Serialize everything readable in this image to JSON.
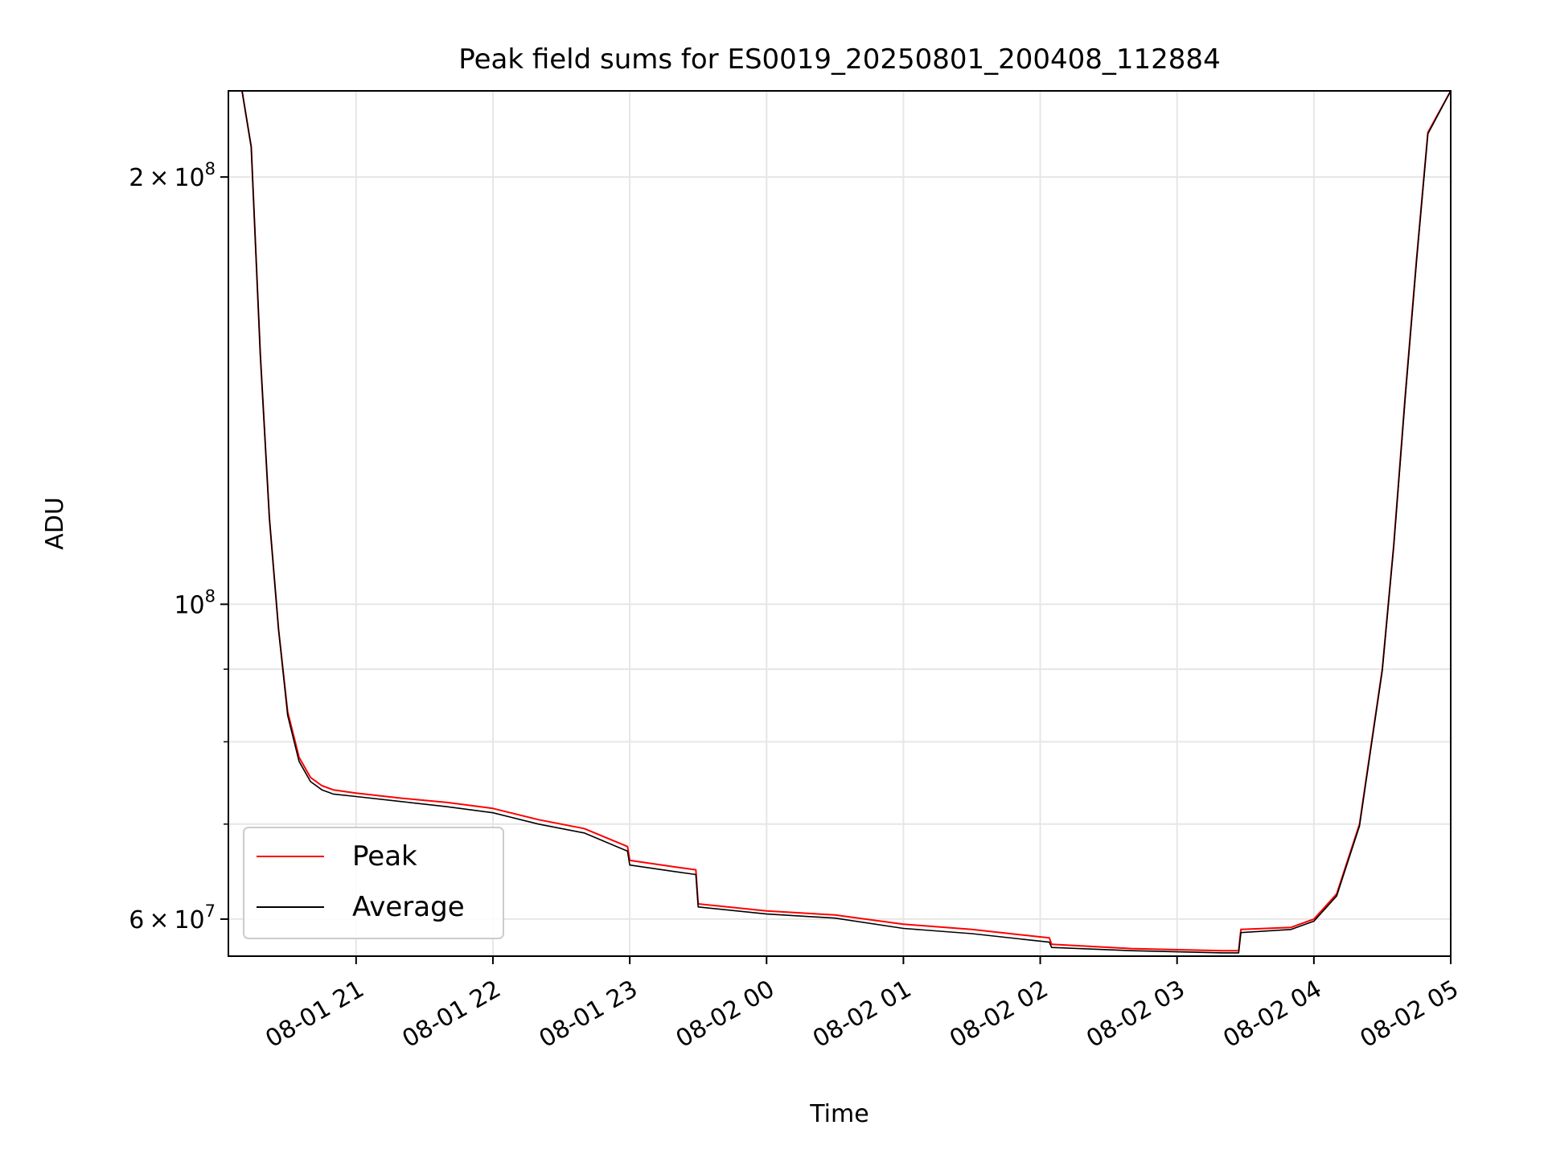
{
  "chart_data": {
    "type": "line",
    "title": "Peak field sums for ES0019_20250801_200408_112884",
    "xlabel": "Time",
    "ylabel": "ADU",
    "y_scale": "log",
    "ylim": [
      56500000,
      230000000
    ],
    "xlim": [
      "2025-08-01 20:04",
      "2025-08-02 05:00"
    ],
    "grid": true,
    "legend_location": "lower-left",
    "x_tick_labels": [
      "08-01 21",
      "08-01 22",
      "08-01 23",
      "08-02 00",
      "08-02 01",
      "08-02 02",
      "08-02 03",
      "08-02 04",
      "08-02 05"
    ],
    "x_ticks": [
      "2025-08-01 21:00",
      "2025-08-01 22:00",
      "2025-08-01 23:00",
      "2025-08-02 00:00",
      "2025-08-02 01:00",
      "2025-08-02 02:00",
      "2025-08-02 03:00",
      "2025-08-02 04:00",
      "2025-08-02 05:00"
    ],
    "y_ticks": [
      {
        "value": 200000000,
        "mantissa": "2",
        "times": "×",
        "base": "10",
        "exp": "8"
      },
      {
        "value": 100000000,
        "mantissa": "",
        "times": "",
        "base": "10",
        "exp": "8"
      },
      {
        "value": 60000000,
        "mantissa": "6",
        "times": "×",
        "base": "10",
        "exp": "7"
      }
    ],
    "y_minor_ticks": [
      70000000,
      80000000,
      90000000
    ],
    "series": [
      {
        "name": "Peak",
        "color": "#ff0000",
        "x": [
          "2025-08-01 20:04",
          "2025-08-01 20:10",
          "2025-08-01 20:14",
          "2025-08-01 20:18",
          "2025-08-01 20:22",
          "2025-08-01 20:26",
          "2025-08-01 20:30",
          "2025-08-01 20:35",
          "2025-08-01 20:40",
          "2025-08-01 20:45",
          "2025-08-01 20:50",
          "2025-08-01 21:00",
          "2025-08-01 21:20",
          "2025-08-01 21:40",
          "2025-08-01 22:00",
          "2025-08-01 22:20",
          "2025-08-01 22:40",
          "2025-08-01 22:59",
          "2025-08-01 23:00",
          "2025-08-01 23:20",
          "2025-08-01 23:29",
          "2025-08-01 23:30",
          "2025-08-02 00:00",
          "2025-08-02 00:30",
          "2025-08-02 01:00",
          "2025-08-02 01:30",
          "2025-08-02 02:04",
          "2025-08-02 02:05",
          "2025-08-02 02:40",
          "2025-08-02 03:20",
          "2025-08-02 03:27",
          "2025-08-02 03:28",
          "2025-08-02 03:50",
          "2025-08-02 04:00",
          "2025-08-02 04:10",
          "2025-08-02 04:20",
          "2025-08-02 04:30",
          "2025-08-02 04:35",
          "2025-08-02 04:40",
          "2025-08-02 04:45",
          "2025-08-02 04:50",
          "2025-08-02 05:00"
        ],
        "y": [
          230000000,
          230000000,
          210000000,
          150000000,
          115000000,
          96000000,
          84000000,
          78000000,
          75500000,
          74500000,
          74000000,
          73600000,
          73000000,
          72500000,
          71800000,
          70500000,
          69500000,
          67500000,
          66000000,
          65300000,
          65000000,
          61500000,
          60800000,
          60400000,
          59500000,
          59000000,
          58200000,
          57600000,
          57200000,
          57000000,
          57000000,
          59000000,
          59200000,
          60000000,
          62500000,
          70000000,
          90000000,
          110000000,
          140000000,
          175000000,
          215000000,
          230000000
        ]
      },
      {
        "name": "Average",
        "color": "#000000",
        "x": [
          "2025-08-01 20:04",
          "2025-08-01 20:10",
          "2025-08-01 20:14",
          "2025-08-01 20:18",
          "2025-08-01 20:22",
          "2025-08-01 20:26",
          "2025-08-01 20:30",
          "2025-08-01 20:35",
          "2025-08-01 20:40",
          "2025-08-01 20:45",
          "2025-08-01 20:50",
          "2025-08-01 21:00",
          "2025-08-01 21:20",
          "2025-08-01 21:40",
          "2025-08-01 22:00",
          "2025-08-01 22:20",
          "2025-08-01 22:40",
          "2025-08-01 22:59",
          "2025-08-01 23:00",
          "2025-08-01 23:20",
          "2025-08-01 23:29",
          "2025-08-01 23:30",
          "2025-08-02 00:00",
          "2025-08-02 00:30",
          "2025-08-02 01:00",
          "2025-08-02 01:30",
          "2025-08-02 02:04",
          "2025-08-02 02:05",
          "2025-08-02 02:40",
          "2025-08-02 03:20",
          "2025-08-02 03:27",
          "2025-08-02 03:28",
          "2025-08-02 03:50",
          "2025-08-02 04:00",
          "2025-08-02 04:10",
          "2025-08-02 04:20",
          "2025-08-02 04:30",
          "2025-08-02 04:35",
          "2025-08-02 04:40",
          "2025-08-02 04:45",
          "2025-08-02 04:50",
          "2025-08-02 05:00"
        ],
        "y": [
          230000000,
          230000000,
          210000000,
          150000000,
          115000000,
          96000000,
          83500000,
          77500000,
          75000000,
          74000000,
          73500000,
          73200000,
          72600000,
          72000000,
          71300000,
          70000000,
          69000000,
          67000000,
          65500000,
          64800000,
          64500000,
          61200000,
          60500000,
          60100000,
          59100000,
          58600000,
          57800000,
          57300000,
          57000000,
          56800000,
          56800000,
          58700000,
          59000000,
          59800000,
          62300000,
          69800000,
          89800000,
          109800000,
          139500000,
          174500000,
          214500000,
          230000000
        ]
      }
    ]
  }
}
